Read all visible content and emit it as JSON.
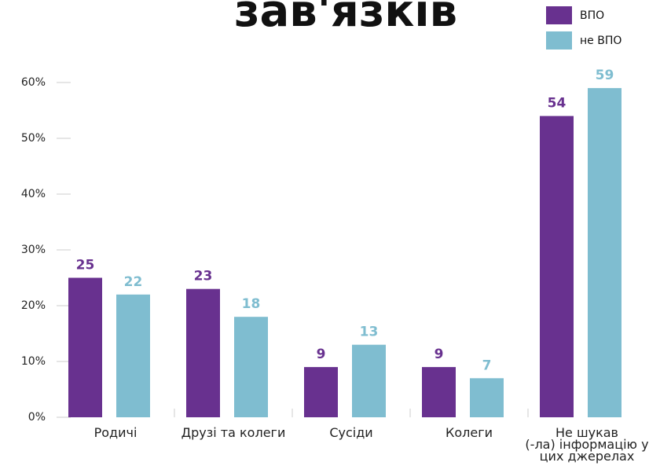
{
  "chart_data": {
    "type": "bar",
    "title": "зав'язків",
    "categories": [
      "Родичі",
      "Друзі та колеги",
      "Сусіди",
      "Колеги",
      "Не шукав\n(-ла) інформацію у\nцих джерелах"
    ],
    "series": [
      {
        "name": "ВПО",
        "color": "#68318f",
        "values": [
          25,
          23,
          9,
          9,
          54
        ]
      },
      {
        "name": "не ВПО",
        "color": "#7fbdd0",
        "values": [
          22,
          18,
          13,
          7,
          59
        ]
      }
    ],
    "ylim": [
      0,
      60
    ],
    "yticks": [
      {
        "value": 0,
        "label": "0%"
      },
      {
        "value": 10,
        "label": "10%"
      },
      {
        "value": 20,
        "label": "20%"
      },
      {
        "value": 30,
        "label": "30%"
      },
      {
        "value": 40,
        "label": "40%"
      },
      {
        "value": 50,
        "label": "50%"
      },
      {
        "value": 60,
        "label": "60%"
      }
    ],
    "legend": "top-right"
  }
}
